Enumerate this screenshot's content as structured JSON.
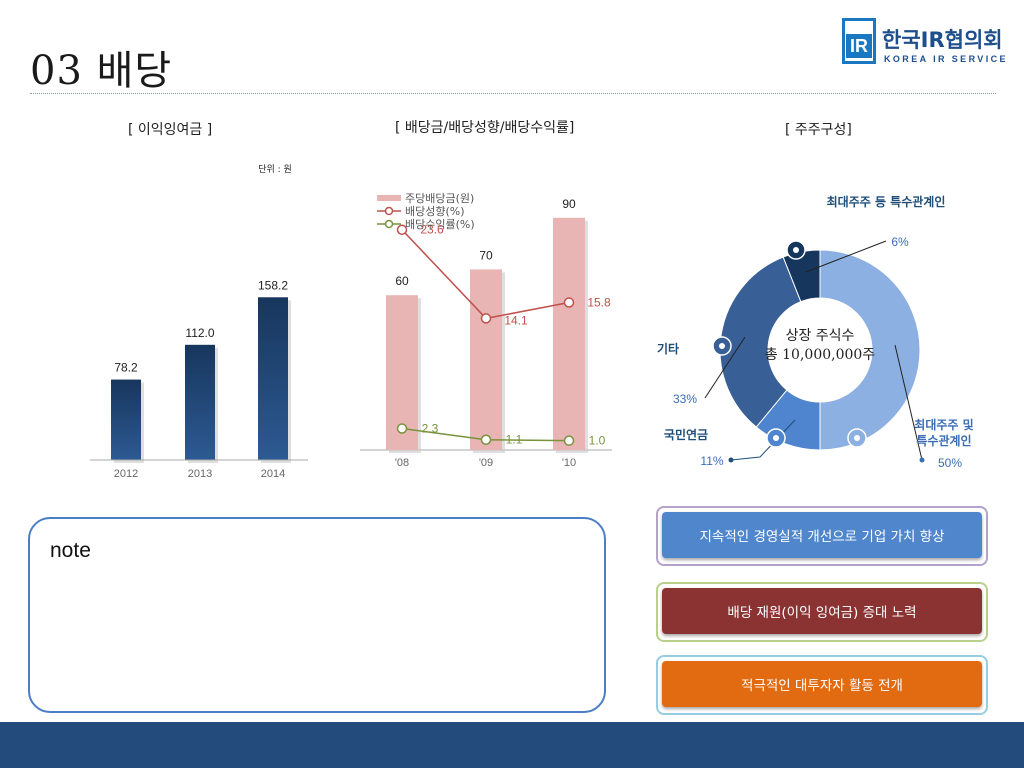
{
  "header": {
    "title": "03 배당",
    "logo_mark": "IR",
    "logo_name": "한국IR협의회",
    "logo_sub": "KOREA IR SERVICE"
  },
  "chart_data": [
    {
      "type": "bar",
      "title": "[ 이익잉여금 ]",
      "unit_note": "단위 : 원",
      "categories": [
        "2012",
        "2013",
        "2014"
      ],
      "values": [
        78.2,
        112.0,
        158.2
      ],
      "value_labels": [
        "78.2",
        "112.0",
        "158.2"
      ],
      "color": "#1f4d80",
      "ylim": [
        0,
        175
      ]
    },
    {
      "type": "bar",
      "title": "[ 배당금/배당성향/배당수익률]",
      "categories": [
        "'08",
        "'09",
        "'10"
      ],
      "legend": [
        "주당배당금(원)",
        "배당성향(%)",
        "배당수익률(%)"
      ],
      "bars": {
        "name": "주당배당금(원)",
        "values": [
          60,
          70,
          90
        ],
        "labels": [
          "60",
          "70",
          "90"
        ],
        "color": "#e8b4b4"
      },
      "lines": [
        {
          "name": "배당성향(%)",
          "values": [
            23.6,
            14.1,
            15.8
          ],
          "labels": [
            "23.6",
            "14.1",
            "15.8"
          ],
          "color": "#c0504d"
        },
        {
          "name": "배당수익률(%)",
          "values": [
            2.3,
            1.1,
            1.0
          ],
          "labels": [
            "2.3",
            "1.1",
            "1.0"
          ],
          "color": "#77933c"
        }
      ]
    },
    {
      "type": "pie",
      "title": "[ 주주구성]",
      "center_lines": [
        "상장 주식수",
        "총 10,000,000주"
      ],
      "slices": [
        {
          "name": "최대주주 및 특수관계인",
          "name_lines": [
            "최대주주 및",
            "특수관계인"
          ],
          "value": 50,
          "label": "50%",
          "color": "#8db0e2"
        },
        {
          "name": "국민연금",
          "name_lines": [
            "국민연금"
          ],
          "value": 11,
          "label": "11%",
          "color": "#4f85cf"
        },
        {
          "name": "기타",
          "name_lines": [
            "기타"
          ],
          "value": 33,
          "label": "33%",
          "color": "#385f96"
        },
        {
          "name": "최대주주 등 특수관계인",
          "name_lines": [
            "최대주주 등 특수관계인"
          ],
          "value": 6,
          "label": "6%",
          "color": "#16365e"
        }
      ]
    }
  ],
  "note": {
    "text": "note"
  },
  "actions": [
    {
      "label": "지속적인 경영실적 개선으로 기업 가치 향상",
      "color": "#4f86cc",
      "frame": "#b3a3cc"
    },
    {
      "label": "배당 재원(이익 잉여금) 증대 노력",
      "color": "#8b3233",
      "frame": "#b7d18a"
    },
    {
      "label": "적극적인 대투자자 활동 전개",
      "color": "#e26a10",
      "frame": "#96cde2"
    }
  ]
}
